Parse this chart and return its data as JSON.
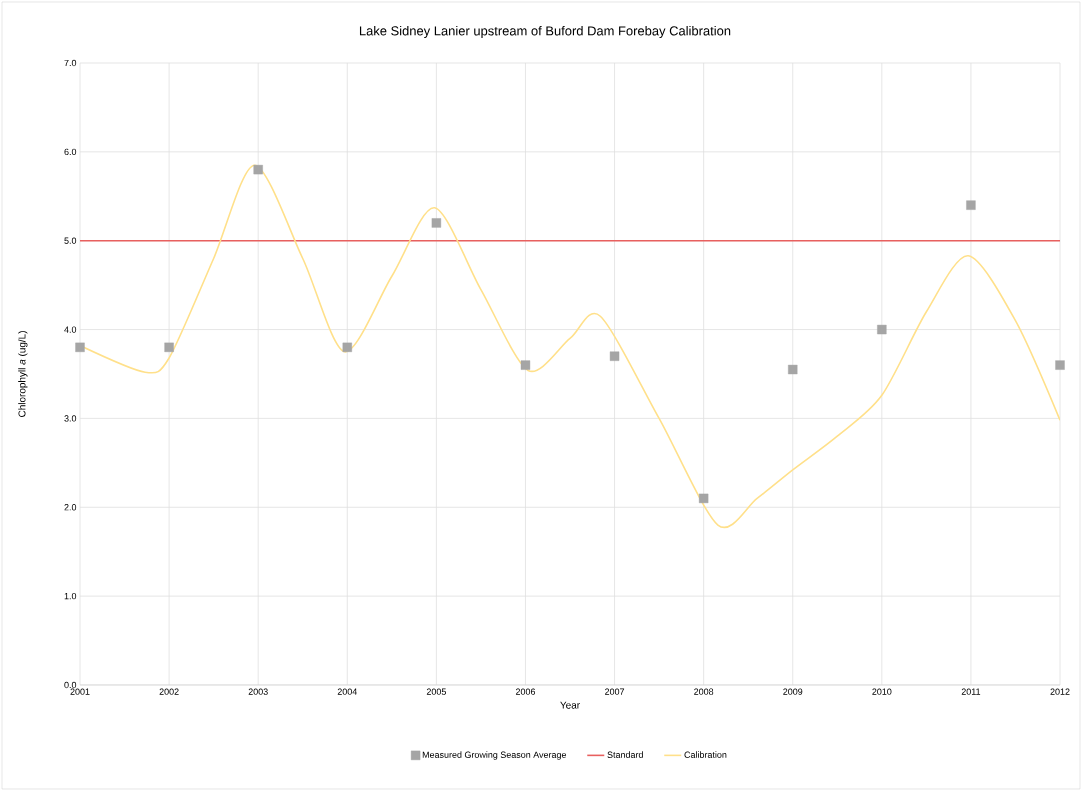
{
  "chart_data": {
    "type": "line",
    "title": "Lake Sidney Lanier upstream of Buford Dam Forebay Calibration",
    "xlabel": "Year",
    "ylabel": "Chlorophyll *a* (ug/L)",
    "xlim": [
      2001,
      2012
    ],
    "ylim": [
      0,
      7
    ],
    "xticks": [
      2001,
      2002,
      2003,
      2004,
      2005,
      2006,
      2007,
      2008,
      2009,
      2010,
      2011,
      2012
    ],
    "yticks": [
      {
        "value": 0,
        "label": "0.0"
      },
      {
        "value": 1,
        "label": "1.0"
      },
      {
        "value": 2,
        "label": "2.0"
      },
      {
        "value": 3,
        "label": "3.0"
      },
      {
        "value": 4,
        "label": "4.0"
      },
      {
        "value": 5,
        "label": "5.0"
      },
      {
        "value": 6,
        "label": "6.0"
      },
      {
        "value": 7,
        "label": "7.0"
      }
    ],
    "grid": true,
    "legend": "bottom",
    "series": [
      {
        "name": "Measured Growing Season Average",
        "type": "scatter",
        "marker": "square",
        "color": "#a5a5a5",
        "x": [
          2001,
          2002,
          2003,
          2004,
          2005,
          2006,
          2007,
          2008,
          2009,
          2010,
          2011,
          2012
        ],
        "values": [
          3.8,
          3.8,
          5.8,
          3.8,
          5.2,
          3.6,
          3.7,
          2.1,
          3.55,
          4.0,
          5.4,
          3.6
        ]
      },
      {
        "name": "Standard",
        "color": "#e8605f",
        "x": [
          2001,
          2012
        ],
        "values": [
          5.0,
          5.0
        ]
      },
      {
        "name": "Calibration",
        "color": "#ffe08a",
        "x": [
          2001,
          2001.73,
          2002,
          2002.5,
          2002.96,
          2003.5,
          2003.97,
          2004.5,
          2004.98,
          2005.5,
          2006.03,
          2006.5,
          2006.84,
          2007.5,
          2008.16,
          2008.6,
          2009,
          2009.5,
          2010,
          2010.5,
          2010.97,
          2011.5,
          2012
        ],
        "values": [
          3.82,
          3.52,
          3.68,
          4.8,
          5.85,
          4.8,
          3.75,
          4.6,
          5.37,
          4.45,
          3.54,
          3.9,
          4.15,
          3.0,
          1.8,
          2.1,
          2.42,
          2.8,
          3.26,
          4.2,
          4.83,
          4.1,
          2.98
        ]
      }
    ]
  }
}
